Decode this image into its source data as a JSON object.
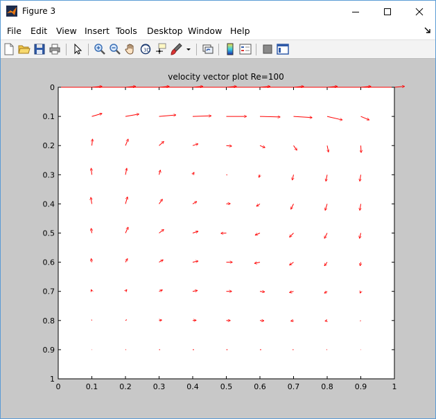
{
  "window": {
    "title": "Figure 3"
  },
  "menu": [
    "File",
    "Edit",
    "View",
    "Insert",
    "Tools",
    "Desktop",
    "Window",
    "Help"
  ],
  "toolbar": [
    "new-figure",
    "open-file",
    "save-figure",
    "print-figure",
    "edit-plot",
    "zoom-in",
    "zoom-out",
    "pan",
    "rotate-3d",
    "data-cursor",
    "brush",
    "link-plot",
    "colorbar",
    "legend",
    "hide-plot-tools",
    "show-plot-tools"
  ],
  "colors": {
    "arrow": "#ff0000",
    "axes_border_top": "#ff0000",
    "figure_bg": "#c8c8c8"
  },
  "chart_data": {
    "type": "quiver",
    "title": "velocity vector plot Re=100",
    "xlabel": "",
    "ylabel": "",
    "xlim": [
      0,
      1
    ],
    "ylim": [
      0,
      1
    ],
    "y_reversed": true,
    "grid": false,
    "x_ticks": [
      "0",
      "0.1",
      "0.2",
      "0.3",
      "0.4",
      "0.5",
      "0.6",
      "0.7",
      "0.8",
      "0.9",
      "1"
    ],
    "y_ticks": [
      "0",
      "0.1",
      "0.2",
      "0.3",
      "0.4",
      "0.5",
      "0.6",
      "0.7",
      "0.8",
      "0.9",
      "1"
    ],
    "vectors": [
      {
        "x": 0.1,
        "y": 0,
        "u": 0.03,
        "v": -0.003
      },
      {
        "x": 0.2,
        "y": 0,
        "u": 0.03,
        "v": -0.003
      },
      {
        "x": 0.3,
        "y": 0,
        "u": 0.03,
        "v": -0.003
      },
      {
        "x": 0.4,
        "y": 0,
        "u": 0.03,
        "v": -0.003
      },
      {
        "x": 0.5,
        "y": 0,
        "u": 0.03,
        "v": -0.003
      },
      {
        "x": 0.6,
        "y": 0,
        "u": 0.03,
        "v": -0.003
      },
      {
        "x": 0.7,
        "y": 0,
        "u": 0.03,
        "v": -0.003
      },
      {
        "x": 0.8,
        "y": 0,
        "u": 0.03,
        "v": -0.003
      },
      {
        "x": 0.9,
        "y": 0,
        "u": 0.03,
        "v": -0.003
      },
      {
        "x": 1.0,
        "y": 0,
        "u": 0.03,
        "v": -0.003
      },
      {
        "x": 0.1,
        "y": 0.1,
        "u": 0.03,
        "v": -0.01
      },
      {
        "x": 0.2,
        "y": 0.1,
        "u": 0.04,
        "v": -0.008
      },
      {
        "x": 0.3,
        "y": 0.1,
        "u": 0.05,
        "v": -0.005
      },
      {
        "x": 0.4,
        "y": 0.1,
        "u": 0.055,
        "v": -0.002
      },
      {
        "x": 0.5,
        "y": 0.1,
        "u": 0.06,
        "v": 0
      },
      {
        "x": 0.6,
        "y": 0.1,
        "u": 0.06,
        "v": 0.002
      },
      {
        "x": 0.7,
        "y": 0.1,
        "u": 0.055,
        "v": 0.004
      },
      {
        "x": 0.8,
        "y": 0.1,
        "u": 0.045,
        "v": 0.012
      },
      {
        "x": 0.9,
        "y": 0.1,
        "u": 0.025,
        "v": 0.012
      },
      {
        "x": 0.1,
        "y": 0.2,
        "u": 0.002,
        "v": -0.022
      },
      {
        "x": 0.2,
        "y": 0.2,
        "u": 0.008,
        "v": -0.022
      },
      {
        "x": 0.3,
        "y": 0.2,
        "u": 0.014,
        "v": -0.014
      },
      {
        "x": 0.4,
        "y": 0.2,
        "u": 0.016,
        "v": -0.006
      },
      {
        "x": 0.5,
        "y": 0.2,
        "u": 0.016,
        "v": 0.002
      },
      {
        "x": 0.6,
        "y": 0.2,
        "u": 0.015,
        "v": 0.007
      },
      {
        "x": 0.7,
        "y": 0.2,
        "u": 0.01,
        "v": 0.016
      },
      {
        "x": 0.8,
        "y": 0.2,
        "u": 0.004,
        "v": 0.022
      },
      {
        "x": 0.9,
        "y": 0.2,
        "u": 0.001,
        "v": 0.024
      },
      {
        "x": 0.1,
        "y": 0.3,
        "u": -0.002,
        "v": -0.022
      },
      {
        "x": 0.2,
        "y": 0.3,
        "u": 0.004,
        "v": -0.022
      },
      {
        "x": 0.3,
        "y": 0.3,
        "u": 0.004,
        "v": -0.016
      },
      {
        "x": 0.4,
        "y": 0.3,
        "u": 0.004,
        "v": -0.008
      },
      {
        "x": 0.5,
        "y": 0.3,
        "u": 0.003,
        "v": 0.001
      },
      {
        "x": 0.6,
        "y": 0.3,
        "u": -0.003,
        "v": 0.009
      },
      {
        "x": 0.7,
        "y": 0.3,
        "u": -0.004,
        "v": 0.018
      },
      {
        "x": 0.8,
        "y": 0.3,
        "u": -0.004,
        "v": 0.022
      },
      {
        "x": 0.9,
        "y": 0.3,
        "u": -0.003,
        "v": 0.022
      },
      {
        "x": 0.1,
        "y": 0.4,
        "u": -0.003,
        "v": -0.022
      },
      {
        "x": 0.2,
        "y": 0.4,
        "u": 0.006,
        "v": -0.024
      },
      {
        "x": 0.3,
        "y": 0.4,
        "u": 0.01,
        "v": -0.016
      },
      {
        "x": 0.4,
        "y": 0.4,
        "u": 0.012,
        "v": -0.008
      },
      {
        "x": 0.5,
        "y": 0.4,
        "u": 0.012,
        "v": -0.001
      },
      {
        "x": 0.6,
        "y": 0.4,
        "u": -0.01,
        "v": 0.008
      },
      {
        "x": 0.7,
        "y": 0.4,
        "u": -0.008,
        "v": 0.018
      },
      {
        "x": 0.8,
        "y": 0.4,
        "u": -0.006,
        "v": 0.022
      },
      {
        "x": 0.9,
        "y": 0.4,
        "u": -0.003,
        "v": 0.022
      },
      {
        "x": 0.1,
        "y": 0.5,
        "u": -0.002,
        "v": -0.016
      },
      {
        "x": 0.2,
        "y": 0.5,
        "u": 0.008,
        "v": -0.02
      },
      {
        "x": 0.3,
        "y": 0.5,
        "u": 0.014,
        "v": -0.012
      },
      {
        "x": 0.4,
        "y": 0.5,
        "u": 0.016,
        "v": -0.006
      },
      {
        "x": 0.5,
        "y": 0.5,
        "u": -0.016,
        "v": 0.001
      },
      {
        "x": 0.6,
        "y": 0.5,
        "u": -0.014,
        "v": 0.007
      },
      {
        "x": 0.7,
        "y": 0.5,
        "u": -0.012,
        "v": 0.014
      },
      {
        "x": 0.8,
        "y": 0.5,
        "u": -0.008,
        "v": 0.018
      },
      {
        "x": 0.9,
        "y": 0.5,
        "u": -0.004,
        "v": 0.018
      },
      {
        "x": 0.1,
        "y": 0.6,
        "u": -0.002,
        "v": -0.012
      },
      {
        "x": 0.2,
        "y": 0.6,
        "u": 0.006,
        "v": -0.012
      },
      {
        "x": 0.3,
        "y": 0.6,
        "u": 0.012,
        "v": -0.008
      },
      {
        "x": 0.4,
        "y": 0.6,
        "u": 0.016,
        "v": -0.004
      },
      {
        "x": 0.5,
        "y": 0.6,
        "u": 0.018,
        "v": 0
      },
      {
        "x": 0.6,
        "y": 0.6,
        "u": -0.016,
        "v": 0.004
      },
      {
        "x": 0.7,
        "y": 0.6,
        "u": -0.012,
        "v": 0.01
      },
      {
        "x": 0.8,
        "y": 0.6,
        "u": -0.008,
        "v": 0.012
      },
      {
        "x": 0.9,
        "y": 0.6,
        "u": -0.002,
        "v": 0.012
      },
      {
        "x": 0.1,
        "y": 0.7,
        "u": -0.002,
        "v": -0.006
      },
      {
        "x": 0.2,
        "y": 0.7,
        "u": 0.004,
        "v": -0.006
      },
      {
        "x": 0.3,
        "y": 0.7,
        "u": 0.01,
        "v": -0.005
      },
      {
        "x": 0.4,
        "y": 0.7,
        "u": 0.014,
        "v": -0.003
      },
      {
        "x": 0.5,
        "y": 0.7,
        "u": 0.016,
        "v": 0
      },
      {
        "x": 0.6,
        "y": 0.7,
        "u": 0.014,
        "v": 0.002
      },
      {
        "x": 0.7,
        "y": 0.7,
        "u": -0.012,
        "v": 0.004
      },
      {
        "x": 0.8,
        "y": 0.7,
        "u": -0.008,
        "v": 0.006
      },
      {
        "x": 0.9,
        "y": 0.7,
        "u": -0.002,
        "v": 0.006
      },
      {
        "x": 0.1,
        "y": 0.8,
        "u": -0.001,
        "v": -0.003
      },
      {
        "x": 0.2,
        "y": 0.8,
        "u": 0.004,
        "v": -0.003
      },
      {
        "x": 0.3,
        "y": 0.8,
        "u": 0.008,
        "v": -0.002
      },
      {
        "x": 0.4,
        "y": 0.8,
        "u": 0.01,
        "v": -0.001
      },
      {
        "x": 0.5,
        "y": 0.8,
        "u": 0.012,
        "v": 0
      },
      {
        "x": 0.6,
        "y": 0.8,
        "u": 0.012,
        "v": 0.001
      },
      {
        "x": 0.7,
        "y": 0.8,
        "u": -0.008,
        "v": 0.002
      },
      {
        "x": 0.8,
        "y": 0.8,
        "u": -0.006,
        "v": 0.002
      },
      {
        "x": 0.9,
        "y": 0.8,
        "u": -0.002,
        "v": 0.002
      },
      {
        "x": 0.1,
        "y": 0.9,
        "u": 0.001,
        "v": 0
      },
      {
        "x": 0.2,
        "y": 0.9,
        "u": 0.002,
        "v": 0
      },
      {
        "x": 0.3,
        "y": 0.9,
        "u": 0.003,
        "v": 0
      },
      {
        "x": 0.4,
        "y": 0.9,
        "u": 0.004,
        "v": 0
      },
      {
        "x": 0.5,
        "y": 0.9,
        "u": 0.004,
        "v": 0
      },
      {
        "x": 0.6,
        "y": 0.9,
        "u": 0.004,
        "v": 0
      },
      {
        "x": 0.7,
        "y": 0.9,
        "u": -0.003,
        "v": 0
      },
      {
        "x": 0.8,
        "y": 0.9,
        "u": -0.002,
        "v": 0
      },
      {
        "x": 0.9,
        "y": 0.9,
        "u": -0.001,
        "v": 0
      }
    ]
  }
}
